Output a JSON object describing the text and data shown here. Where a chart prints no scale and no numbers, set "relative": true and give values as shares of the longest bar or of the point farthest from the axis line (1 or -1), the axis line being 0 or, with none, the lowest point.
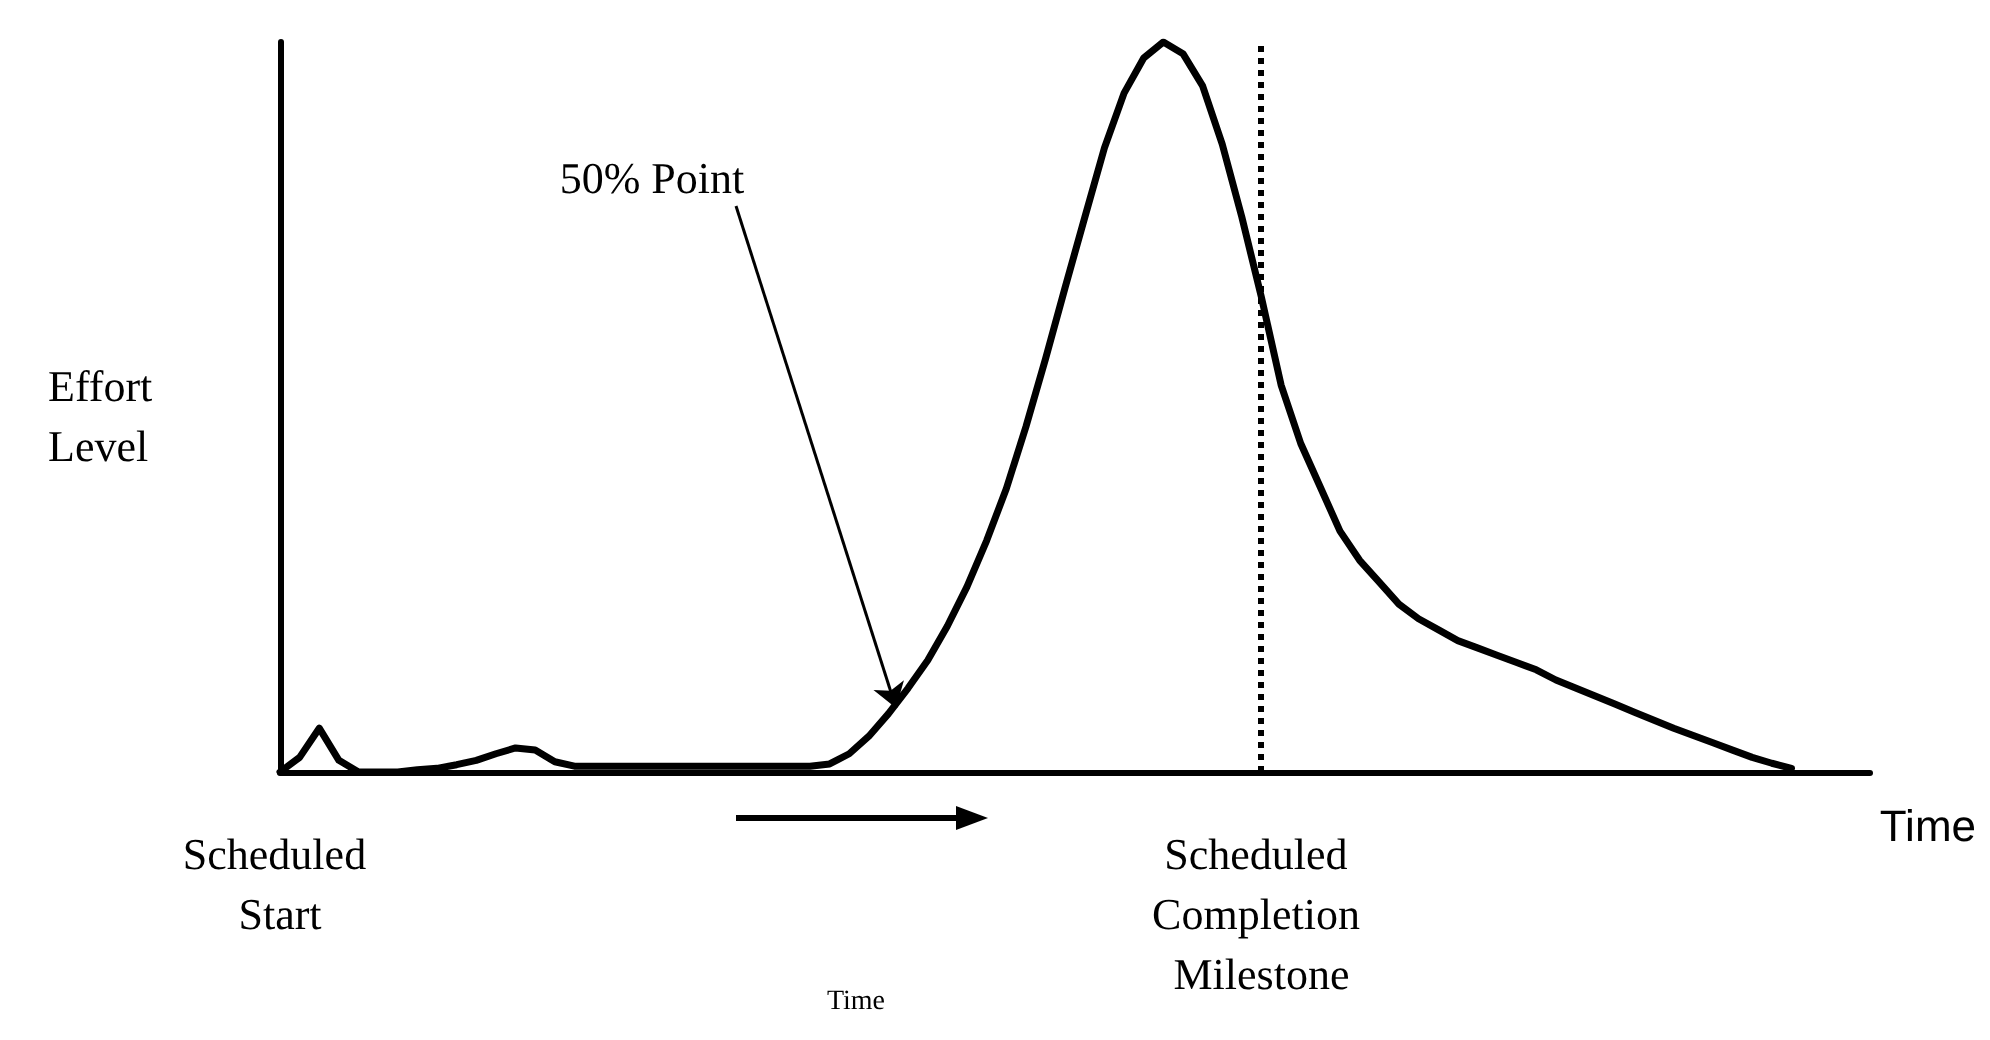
{
  "chart_data": {
    "type": "line",
    "relative": true,
    "ylabel": "Effort Level",
    "xlabel": "Time",
    "tick_labels": "x",
    "marker": "none",
    "line_style": "solid",
    "categories": [
      "Scheduled Start",
      null,
      null,
      null,
      null,
      null,
      null,
      null,
      null,
      null,
      null,
      null,
      null,
      null,
      null,
      null,
      null,
      null,
      null,
      null,
      null,
      null,
      null,
      null,
      null,
      null,
      null,
      null,
      null,
      null,
      null,
      null,
      null,
      null,
      null,
      null,
      null,
      null,
      null,
      null,
      null,
      null,
      null,
      null,
      null,
      null,
      null,
      null,
      null,
      null,
      "Scheduled Completion Milestone",
      null,
      null,
      null,
      null,
      null,
      null,
      null,
      null,
      null,
      null,
      null,
      null,
      null,
      null,
      null,
      null,
      null,
      null,
      null,
      null,
      null,
      null,
      null,
      null,
      null,
      null,
      null,
      null,
      null,
      null,
      null
    ],
    "series": [
      {
        "color": "#000000",
        "values": [
          0,
          0.02,
          0.06,
          0.016,
          0,
          0,
          0,
          0.003,
          0.005,
          0.01,
          0.016,
          0.025,
          0.033,
          0.03,
          0.014,
          0.008,
          0.008,
          0.008,
          0.008,
          0.008,
          0.008,
          0.008,
          0.008,
          0.008,
          0.008,
          0.008,
          0.008,
          0.008,
          0.011,
          0.025,
          0.049,
          0.08,
          0.115,
          0.153,
          0.2,
          0.254,
          0.317,
          0.388,
          0.473,
          0.566,
          0.664,
          0.76,
          0.855,
          0.93,
          0.978,
          1,
          0.984,
          0.94,
          0.86,
          0.76,
          0.65,
          0.53,
          0.45,
          0.39,
          0.33,
          0.29,
          0.26,
          0.23,
          0.21,
          0.195,
          0.18,
          0.17,
          0.16,
          0.15,
          0.14,
          0.126,
          0.115,
          0.104,
          0.093,
          0.082,
          0.071,
          0.06,
          0.05,
          0.04,
          0.03,
          0.02,
          0.012,
          0.005,
          null,
          null,
          null,
          null
        ]
      }
    ],
    "ref_lines": [
      {
        "axis": "x",
        "value": "Scheduled Completion Milestone",
        "line_style": "dotted",
        "color": "#000000"
      }
    ],
    "annotations": [
      "50% Point",
      "Time"
    ]
  }
}
